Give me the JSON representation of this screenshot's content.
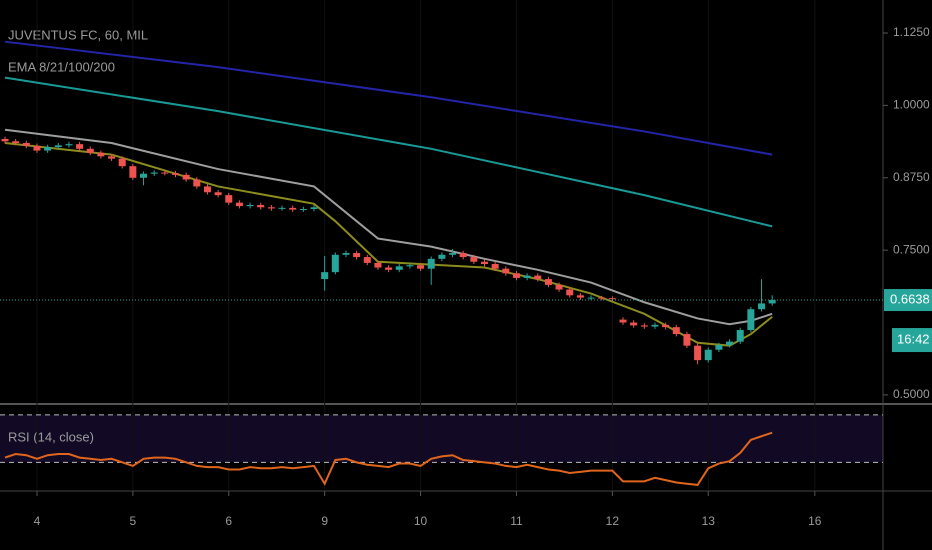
{
  "chart_data": [
    {
      "type": "candlestick",
      "title": "JUVENTUS FC, 60, MIL",
      "subtitle": "EMA 8/21/100/200",
      "up_color": "#26a69a",
      "down_color": "#ef5350",
      "x": [
        0,
        1,
        2,
        3,
        4,
        5,
        6,
        7,
        8,
        9,
        10,
        11,
        12,
        13,
        14,
        15,
        16,
        17,
        18,
        19,
        20,
        21,
        22,
        23,
        24,
        25,
        26,
        27,
        28,
        29,
        30,
        31,
        32,
        33,
        34,
        35,
        36,
        37,
        38,
        39,
        40,
        41,
        42,
        43,
        44,
        45,
        46,
        47,
        48,
        49,
        50,
        51,
        52,
        53,
        54,
        55,
        56,
        57,
        58,
        59,
        60,
        61,
        62,
        63,
        64,
        65,
        66,
        67,
        68,
        69,
        70,
        71,
        72
      ],
      "open": [
        0.942,
        0.938,
        0.935,
        0.93,
        0.922,
        0.928,
        0.931,
        0.933,
        0.925,
        0.918,
        0.912,
        0.908,
        0.895,
        0.875,
        0.882,
        0.884,
        0.883,
        0.88,
        0.872,
        0.86,
        0.85,
        0.845,
        0.832,
        0.826,
        0.828,
        0.824,
        0.822,
        0.823,
        0.82,
        0.821,
        0.7,
        0.712,
        0.742,
        0.745,
        0.738,
        0.728,
        0.72,
        0.716,
        0.722,
        0.724,
        0.718,
        0.735,
        0.742,
        0.745,
        0.738,
        0.73,
        0.726,
        0.718,
        0.71,
        0.702,
        0.706,
        0.7,
        0.69,
        0.682,
        0.672,
        0.668,
        0.668,
        0.667,
        0.63,
        0.625,
        0.62,
        0.618,
        0.621,
        0.617,
        0.605,
        0.585,
        0.56,
        0.578,
        0.586,
        0.592,
        0.612,
        0.648,
        0.658
      ],
      "high": [
        0.946,
        0.942,
        0.939,
        0.934,
        0.932,
        0.935,
        0.937,
        0.937,
        0.929,
        0.922,
        0.916,
        0.912,
        0.899,
        0.886,
        0.888,
        0.888,
        0.887,
        0.884,
        0.876,
        0.864,
        0.854,
        0.849,
        0.836,
        0.832,
        0.832,
        0.828,
        0.827,
        0.827,
        0.825,
        0.828,
        0.74,
        0.746,
        0.749,
        0.749,
        0.742,
        0.732,
        0.724,
        0.726,
        0.728,
        0.728,
        0.739,
        0.746,
        0.752,
        0.749,
        0.742,
        0.734,
        0.73,
        0.722,
        0.714,
        0.71,
        0.71,
        0.704,
        0.694,
        0.686,
        0.676,
        0.672,
        0.671,
        0.67,
        0.634,
        0.629,
        0.624,
        0.625,
        0.625,
        0.621,
        0.609,
        0.589,
        0.582,
        0.59,
        0.596,
        0.616,
        0.652,
        0.7,
        0.672
      ],
      "low": [
        0.934,
        0.931,
        0.926,
        0.918,
        0.918,
        0.924,
        0.927,
        0.921,
        0.914,
        0.908,
        0.904,
        0.891,
        0.871,
        0.862,
        0.878,
        0.879,
        0.876,
        0.868,
        0.856,
        0.846,
        0.841,
        0.828,
        0.822,
        0.822,
        0.82,
        0.818,
        0.818,
        0.816,
        0.816,
        0.817,
        0.68,
        0.708,
        0.738,
        0.734,
        0.724,
        0.716,
        0.712,
        0.712,
        0.718,
        0.714,
        0.69,
        0.731,
        0.738,
        0.734,
        0.726,
        0.722,
        0.714,
        0.706,
        0.698,
        0.698,
        0.696,
        0.686,
        0.678,
        0.668,
        0.664,
        0.664,
        0.663,
        0.662,
        0.621,
        0.616,
        0.614,
        0.614,
        0.613,
        0.601,
        0.581,
        0.553,
        0.556,
        0.574,
        0.582,
        0.588,
        0.608,
        0.644,
        0.654
      ],
      "close": [
        0.938,
        0.935,
        0.93,
        0.922,
        0.928,
        0.931,
        0.933,
        0.925,
        0.918,
        0.912,
        0.908,
        0.895,
        0.875,
        0.882,
        0.884,
        0.883,
        0.88,
        0.872,
        0.86,
        0.85,
        0.845,
        0.832,
        0.826,
        0.828,
        0.824,
        0.822,
        0.823,
        0.82,
        0.821,
        0.824,
        0.712,
        0.742,
        0.745,
        0.738,
        0.728,
        0.72,
        0.716,
        0.722,
        0.724,
        0.718,
        0.735,
        0.742,
        0.745,
        0.738,
        0.73,
        0.726,
        0.718,
        0.71,
        0.702,
        0.706,
        0.7,
        0.69,
        0.682,
        0.672,
        0.668,
        0.668,
        0.667,
        0.666,
        0.625,
        0.62,
        0.618,
        0.621,
        0.617,
        0.605,
        0.585,
        0.56,
        0.578,
        0.586,
        0.592,
        0.612,
        0.648,
        0.658,
        0.6638
      ],
      "overlays": [
        {
          "color": "#2424a8",
          "x": [
            0,
            20,
            40,
            60,
            72
          ],
          "values": [
            1.11,
            1.066,
            1.014,
            0.955,
            0.915
          ]
        },
        {
          "color": "#1a9a96",
          "x": [
            0,
            20,
            40,
            60,
            72
          ],
          "values": [
            1.048,
            0.99,
            0.925,
            0.845,
            0.791
          ]
        },
        {
          "color": "#9e9e9e",
          "x": [
            0,
            10,
            20,
            29,
            31,
            35,
            40,
            45,
            50,
            55,
            60,
            65,
            68,
            70,
            72
          ],
          "values": [
            0.958,
            0.935,
            0.89,
            0.86,
            0.83,
            0.77,
            0.756,
            0.735,
            0.716,
            0.694,
            0.66,
            0.632,
            0.622,
            0.628,
            0.64
          ]
        },
        {
          "color": "#8c8c1e",
          "x": [
            0,
            10,
            20,
            29,
            31,
            35,
            40,
            45,
            50,
            55,
            60,
            65,
            68,
            70,
            72
          ],
          "values": [
            0.935,
            0.915,
            0.86,
            0.83,
            0.8,
            0.73,
            0.725,
            0.72,
            0.7,
            0.675,
            0.64,
            0.59,
            0.585,
            0.605,
            0.635
          ]
        }
      ],
      "last_price": {
        "value": 0.6638,
        "label": "0.6638"
      },
      "countdown": "16:42",
      "last_color": "#26a69a",
      "xlim": [
        -0.47,
        82.4
      ],
      "ylim": [
        0.486,
        1.182
      ],
      "yticks": [
        {
          "value": 0.5,
          "label": "0.5000"
        },
        {
          "value": 0.75,
          "label": "0.7500"
        },
        {
          "value": 0.875,
          "label": "0.8750"
        },
        {
          "value": 1,
          "label": "1.0000"
        },
        {
          "value": 1.125,
          "label": "1.1250"
        }
      ],
      "xticks": [
        {
          "value": 3,
          "label": "4"
        },
        {
          "value": 12,
          "label": "5"
        },
        {
          "value": 21,
          "label": "6"
        },
        {
          "value": 30,
          "label": "9"
        },
        {
          "value": 39,
          "label": "10"
        },
        {
          "value": 48,
          "label": "11"
        },
        {
          "value": 57,
          "label": "12"
        },
        {
          "value": 66,
          "label": "13"
        },
        {
          "value": 76,
          "label": "16"
        }
      ]
    },
    {
      "type": "line",
      "title": "RSI (14, close)",
      "color": "#e0651d",
      "x": [
        0,
        1,
        2,
        3,
        4,
        5,
        6,
        7,
        8,
        9,
        10,
        11,
        12,
        13,
        14,
        15,
        16,
        17,
        18,
        19,
        20,
        21,
        22,
        23,
        24,
        25,
        26,
        27,
        28,
        29,
        30,
        31,
        32,
        33,
        34,
        35,
        36,
        37,
        38,
        39,
        40,
        41,
        42,
        43,
        44,
        45,
        46,
        47,
        48,
        49,
        50,
        51,
        52,
        53,
        54,
        55,
        56,
        57,
        58,
        59,
        60,
        61,
        62,
        63,
        64,
        65,
        66,
        67,
        68,
        69,
        70,
        71,
        72
      ],
      "values": [
        34,
        37,
        36,
        33,
        36,
        37,
        37,
        34,
        33,
        32,
        33,
        30,
        27,
        33,
        34,
        34,
        33,
        30,
        27,
        26,
        26,
        24,
        24,
        26,
        25,
        25,
        26,
        25,
        26,
        27,
        12,
        32,
        33,
        30,
        28,
        27,
        26,
        29,
        29,
        27,
        33,
        35,
        36,
        32,
        31,
        30,
        29,
        27,
        26,
        28,
        26,
        24,
        23,
        21,
        22,
        23,
        23,
        23,
        14,
        14,
        14,
        17,
        15,
        13,
        12,
        11,
        25,
        29,
        31,
        38,
        49,
        52,
        55
      ],
      "levels": [
        30,
        70
      ],
      "ylim": [
        6.7,
        77.5
      ]
    }
  ]
}
